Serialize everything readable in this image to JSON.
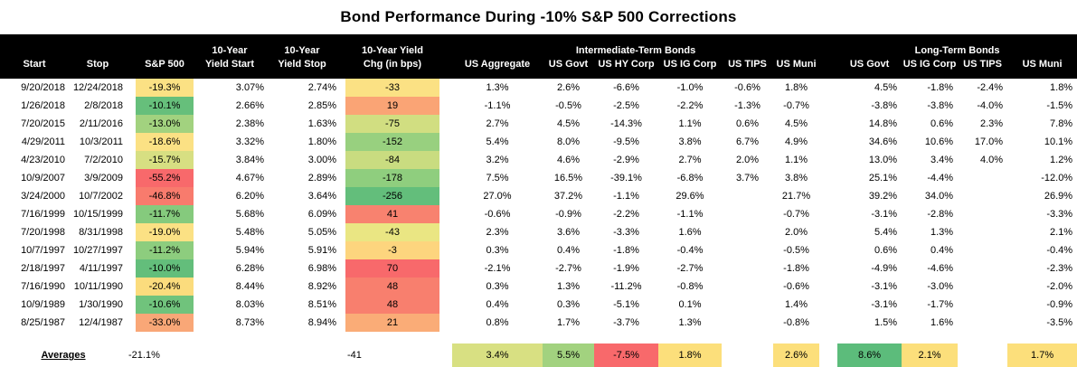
{
  "title": "Bond Performance During -10% S&P 500 Corrections",
  "colors": {
    "header_bg": "#000000",
    "header_text": "#FFFFFF",
    "scale_red": "#F8696B",
    "scale_yellow": "#FFEB84",
    "scale_green": "#63BE7B"
  },
  "chart_data": {
    "type": "table",
    "title": "Bond Performance During -10% S&P 500 Corrections",
    "columns": {
      "line1": {
        "yield_start": "10-Year",
        "yield_stop": "10-Year",
        "yield_chg": "10-Year Yield",
        "intermediate_group": "Intermediate-Term Bonds",
        "long_group": "Long-Term Bonds"
      },
      "line2": [
        "Start",
        "Stop",
        "S&P 500",
        "Yield Start",
        "Yield Stop",
        "Chg (in bps)",
        "US Aggregate",
        "US Govt",
        "US HY Corp",
        "US IG Corp",
        "US TIPS",
        "US Muni",
        "US Govt",
        "US IG Corp",
        "US TIPS",
        "US Muni"
      ]
    },
    "rows": [
      {
        "start": "9/20/2018",
        "stop": "12/24/2018",
        "sp500": "-19.3%",
        "sp500_fill": "#FBE184",
        "yield_start": "3.07%",
        "yield_stop": "2.74%",
        "yield_chg": "-33",
        "yield_chg_fill": "#FBE184",
        "int": [
          "1.3%",
          "2.6%",
          "-6.6%",
          "-1.0%",
          "-0.6%",
          "1.8%"
        ],
        "long": [
          "4.5%",
          "-1.8%",
          "-2.4%",
          "1.8%"
        ]
      },
      {
        "start": "1/26/2018",
        "stop": "2/8/2018",
        "sp500": "-10.1%",
        "sp500_fill": "#66BF7B",
        "yield_start": "2.66%",
        "yield_stop": "2.85%",
        "yield_chg": "19",
        "yield_chg_fill": "#FAA475",
        "int": [
          "-1.1%",
          "-0.5%",
          "-2.5%",
          "-2.2%",
          "-1.3%",
          "-0.7%"
        ],
        "long": [
          "-3.8%",
          "-3.8%",
          "-4.0%",
          "-1.5%"
        ]
      },
      {
        "start": "7/20/2015",
        "stop": "2/11/2016",
        "sp500": "-13.0%",
        "sp500_fill": "#A2D27F",
        "yield_start": "2.38%",
        "yield_stop": "1.63%",
        "yield_chg": "-75",
        "yield_chg_fill": "#D1DE81",
        "int": [
          "2.7%",
          "4.5%",
          "-14.3%",
          "1.1%",
          "0.6%",
          "4.5%"
        ],
        "long": [
          "14.8%",
          "0.6%",
          "2.3%",
          "7.8%"
        ]
      },
      {
        "start": "4/29/2011",
        "stop": "10/3/2011",
        "sp500": "-18.6%",
        "sp500_fill": "#FBE184",
        "yield_start": "3.32%",
        "yield_stop": "1.80%",
        "yield_chg": "-152",
        "yield_chg_fill": "#98D07F",
        "int": [
          "5.4%",
          "8.0%",
          "-9.5%",
          "3.8%",
          "6.7%",
          "4.9%"
        ],
        "long": [
          "34.6%",
          "10.6%",
          "17.0%",
          "10.1%"
        ]
      },
      {
        "start": "4/23/2010",
        "stop": "7/2/2010",
        "sp500": "-15.7%",
        "sp500_fill": "#D7DF82",
        "yield_start": "3.84%",
        "yield_stop": "3.00%",
        "yield_chg": "-84",
        "yield_chg_fill": "#C9DC80",
        "int": [
          "3.2%",
          "4.6%",
          "-2.9%",
          "2.7%",
          "2.0%",
          "1.1%"
        ],
        "long": [
          "13.0%",
          "3.4%",
          "4.0%",
          "1.2%"
        ]
      },
      {
        "start": "10/9/2007",
        "stop": "3/9/2009",
        "sp500": "-55.2%",
        "sp500_fill": "#F8696B",
        "yield_start": "4.67%",
        "yield_stop": "2.89%",
        "yield_chg": "-178",
        "yield_chg_fill": "#8FCE7E",
        "int": [
          "7.5%",
          "16.5%",
          "-39.1%",
          "-6.8%",
          "3.7%",
          "3.8%"
        ],
        "long": [
          "25.1%",
          "-4.4%",
          "",
          "-12.0%"
        ]
      },
      {
        "start": "3/24/2000",
        "stop": "10/7/2002",
        "sp500": "-46.8%",
        "sp500_fill": "#F87B6D",
        "yield_start": "6.20%",
        "yield_stop": "3.64%",
        "yield_chg": "-256",
        "yield_chg_fill": "#63BE7B",
        "int": [
          "27.0%",
          "37.2%",
          "-1.1%",
          "29.6%",
          "",
          "21.7%"
        ],
        "long": [
          "39.2%",
          "34.0%",
          "",
          "26.9%"
        ]
      },
      {
        "start": "7/16/1999",
        "stop": "10/15/1999",
        "sp500": "-11.7%",
        "sp500_fill": "#85CA7D",
        "yield_start": "5.68%",
        "yield_stop": "6.09%",
        "yield_chg": "41",
        "yield_chg_fill": "#F8826F",
        "int": [
          "-0.6%",
          "-0.9%",
          "-2.2%",
          "-1.1%",
          "",
          "-0.7%"
        ],
        "long": [
          "-3.1%",
          "-2.8%",
          "",
          "-3.3%"
        ]
      },
      {
        "start": "7/20/1998",
        "stop": "8/31/1998",
        "sp500": "-19.0%",
        "sp500_fill": "#FBE184",
        "yield_start": "5.48%",
        "yield_stop": "5.05%",
        "yield_chg": "-43",
        "yield_chg_fill": "#EAE683",
        "int": [
          "2.3%",
          "3.6%",
          "-3.3%",
          "1.6%",
          "",
          "2.0%"
        ],
        "long": [
          "5.4%",
          "1.3%",
          "",
          "2.1%"
        ]
      },
      {
        "start": "10/7/1997",
        "stop": "10/27/1997",
        "sp500": "-11.2%",
        "sp500_fill": "#8DCD7E",
        "yield_start": "5.94%",
        "yield_stop": "5.91%",
        "yield_chg": "-3",
        "yield_chg_fill": "#FDD57E",
        "int": [
          "0.3%",
          "0.4%",
          "-1.8%",
          "-0.4%",
          "",
          "-0.5%"
        ],
        "long": [
          "0.6%",
          "0.4%",
          "",
          "-0.4%"
        ]
      },
      {
        "start": "2/18/1997",
        "stop": "4/11/1997",
        "sp500": "-10.0%",
        "sp500_fill": "#63BE7B",
        "yield_start": "6.28%",
        "yield_stop": "6.98%",
        "yield_chg": "70",
        "yield_chg_fill": "#F8696B",
        "int": [
          "-2.1%",
          "-2.7%",
          "-1.9%",
          "-2.7%",
          "",
          "-1.8%"
        ],
        "long": [
          "-4.9%",
          "-4.6%",
          "",
          "-2.3%"
        ]
      },
      {
        "start": "7/16/1990",
        "stop": "10/11/1990",
        "sp500": "-20.4%",
        "sp500_fill": "#FBDC7D",
        "yield_start": "8.44%",
        "yield_stop": "8.92%",
        "yield_chg": "48",
        "yield_chg_fill": "#F87F6E",
        "int": [
          "0.3%",
          "1.3%",
          "-11.2%",
          "-0.8%",
          "",
          "-0.6%"
        ],
        "long": [
          "-3.1%",
          "-3.0%",
          "",
          "-2.0%"
        ]
      },
      {
        "start": "10/9/1989",
        "stop": "1/30/1990",
        "sp500": "-10.6%",
        "sp500_fill": "#70C37C",
        "yield_start": "8.03%",
        "yield_stop": "8.51%",
        "yield_chg": "48",
        "yield_chg_fill": "#F87F6E",
        "int": [
          "0.4%",
          "0.3%",
          "-5.1%",
          "0.1%",
          "",
          "1.4%"
        ],
        "long": [
          "-3.1%",
          "-1.7%",
          "",
          "-0.9%"
        ]
      },
      {
        "start": "8/25/1987",
        "stop": "12/4/1987",
        "sp500": "-33.0%",
        "sp500_fill": "#F9A777",
        "yield_start": "8.73%",
        "yield_stop": "8.94%",
        "yield_chg": "21",
        "yield_chg_fill": "#FAAC77",
        "int": [
          "0.8%",
          "1.7%",
          "-3.7%",
          "1.3%",
          "",
          "-0.8%"
        ],
        "long": [
          "1.5%",
          "1.6%",
          "",
          "-3.5%"
        ]
      }
    ],
    "averages": {
      "label": "Averages",
      "sp500": "-21.1%",
      "yield_chg": "-41",
      "int": [
        {
          "v": "3.4%",
          "fill": "#D8E082"
        },
        {
          "v": "5.5%",
          "fill": "#A2D27F"
        },
        {
          "v": "-7.5%",
          "fill": "#F8696B"
        },
        {
          "v": "1.8%",
          "fill": "#FCDF7B"
        },
        {
          "v": "",
          "fill": ""
        },
        {
          "v": "2.6%",
          "fill": "#FCDF7B"
        }
      ],
      "long": [
        {
          "v": "8.6%",
          "fill": "#5CBC7B"
        },
        {
          "v": "2.1%",
          "fill": "#FCDF7B"
        },
        {
          "v": "",
          "fill": ""
        },
        {
          "v": "1.7%",
          "fill": "#FCDF7B"
        }
      ]
    }
  }
}
